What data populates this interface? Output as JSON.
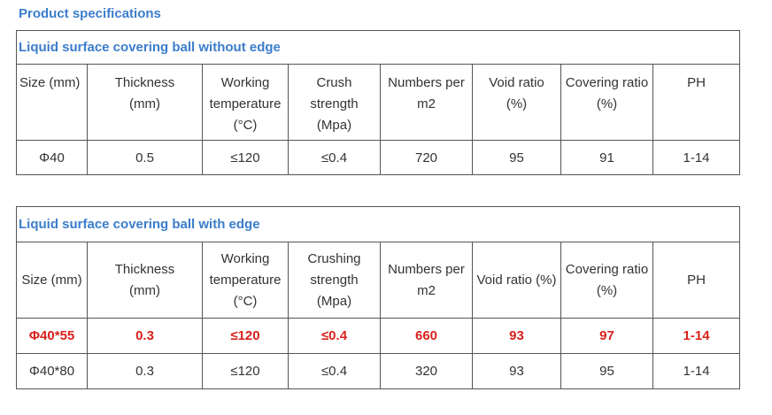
{
  "page_heading": "Product specifications",
  "tables": [
    {
      "title": "Liquid surface covering ball without edge",
      "headers": [
        [
          "Size (mm)"
        ],
        [
          "Thickness",
          "(mm)"
        ],
        [
          "Working",
          "temperature",
          "(°C)"
        ],
        [
          "Crush",
          "strength",
          "(Mpa)"
        ],
        [
          "Numbers per",
          "m2"
        ],
        [
          "Void ratio",
          "(%)"
        ],
        [
          "Covering ratio",
          "(%)"
        ],
        [
          "PH"
        ]
      ],
      "rows": [
        {
          "highlight": false,
          "cells": [
            "Φ40",
            "0.5",
            "≤120",
            "≤0.4",
            "720",
            "95",
            "91",
            "1-14"
          ]
        }
      ]
    },
    {
      "title": "Liquid surface covering ball with edge",
      "headers": [
        [
          "Size (mm)"
        ],
        [
          "Thickness",
          "(mm)"
        ],
        [
          "Working",
          "temperature",
          "(°C)"
        ],
        [
          "Crushing",
          "strength",
          "(Mpa)"
        ],
        [
          "Numbers per",
          "m2"
        ],
        [
          "Void ratio (%)"
        ],
        [
          "Covering ratio",
          "(%)"
        ],
        [
          "PH"
        ]
      ],
      "rows": [
        {
          "highlight": true,
          "cells": [
            "Φ40*55",
            "0.3",
            "≤120",
            "≤0.4",
            "660",
            "93",
            "97",
            "1-14"
          ]
        },
        {
          "highlight": false,
          "cells": [
            "Φ40*80",
            "0.3",
            "≤120",
            "≤0.4",
            "320",
            "93",
            "95",
            "1-14"
          ]
        }
      ]
    }
  ],
  "colors": {
    "heading": "#3b7dcc",
    "highlight": "#d9211c",
    "border": "#555555",
    "text": "#333333"
  }
}
